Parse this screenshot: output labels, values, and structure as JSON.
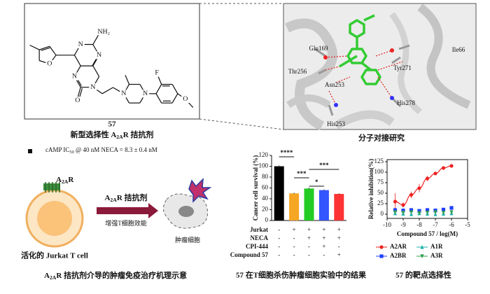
{
  "structure": {
    "compound": "57",
    "caption": [
      "新型选择性 A",
      "2A",
      "R 拮抗剂"
    ],
    "atoms": [
      "NH₂",
      "N",
      "N",
      "N",
      "N",
      "O",
      "O",
      "N",
      "N",
      "F",
      "O"
    ],
    "assay": [
      "cAMP IC",
      "50",
      " @ 40 nM NECA  =  8.3 ± 0.4 nM"
    ]
  },
  "docking": {
    "caption": "分子对接研究",
    "residues": [
      "Glu169",
      "Ile66",
      "Thr256",
      "Tyr271",
      "Asn253",
      "His278",
      "His253"
    ]
  },
  "mechanism": {
    "receptor": [
      "A",
      "2A",
      "R"
    ],
    "cell": "活化的 Jurkat T cell",
    "arrow_top": [
      "A",
      "2A",
      "R 拮抗剂"
    ],
    "arrow_bottom": "增强T细胞效能",
    "tumor": "肿瘤细胞",
    "caption": [
      "A",
      "2A",
      "R 拮抗剂介导的肿瘤免疫治疗机理示意"
    ]
  },
  "chart_data": [
    {
      "type": "bar",
      "ylabel": "Cancer cell survival (%)",
      "values": [
        100,
        50,
        59,
        56,
        49
      ],
      "errors": [
        1.5,
        1,
        1.2,
        1,
        1
      ],
      "colors": [
        "#000000",
        "#f5a623",
        "#22cc22",
        "#3355ff",
        "#ff3333"
      ],
      "ylim": [
        0,
        120
      ],
      "yticks": [
        0,
        20,
        40,
        60,
        80,
        100,
        120
      ],
      "significance": [
        "****",
        "***",
        "*",
        "***"
      ],
      "conditions": [
        {
          "name": "Jurkat",
          "marks": [
            "-",
            "+",
            "+",
            "+",
            "+"
          ]
        },
        {
          "name": "NECA",
          "marks": [
            "-",
            "-",
            "+",
            "+",
            "+"
          ]
        },
        {
          "name": "CPI-444",
          "marks": [
            "-",
            "-",
            "-",
            "+",
            "-"
          ]
        },
        {
          "name": "Compound 57",
          "marks": [
            "-",
            "-",
            "-",
            "-",
            "+"
          ]
        }
      ],
      "caption": "57 在T细胞杀伤肿瘤细胞实验中的结果"
    },
    {
      "type": "scatter",
      "ylabel": "Relative inhibition(%)",
      "xlabel": "Compound 57 / log(M)",
      "xlim": [
        -10,
        -5
      ],
      "xticks": [
        -10,
        -9,
        -8,
        -7,
        -6,
        -5
      ],
      "ylim": [
        -10,
        130
      ],
      "yticks": [
        0,
        25,
        50,
        75,
        100,
        125
      ],
      "x": [
        -9.5,
        -9,
        -8.5,
        -8,
        -7.5,
        -7,
        -6.5,
        -6
      ],
      "series": [
        {
          "name": "A2AR",
          "color": "#ee2222",
          "marker": "circle",
          "line": true,
          "values": [
            30,
            22,
            46,
            62,
            85,
            97,
            110,
            115
          ],
          "errors": [
            20,
            6,
            8,
            10,
            6,
            4,
            3,
            2
          ]
        },
        {
          "name": "A1R",
          "color": "#20b2aa",
          "marker": "triangle",
          "line": false,
          "values": [
            2,
            1,
            0,
            2,
            1,
            0,
            1,
            2
          ],
          "errors": [
            2,
            2,
            2,
            2,
            2,
            2,
            2,
            2
          ]
        },
        {
          "name": "A2BR",
          "color": "#2040ff",
          "marker": "square",
          "line": false,
          "values": [
            10,
            9,
            10,
            8,
            10,
            9,
            11,
            15
          ],
          "errors": [
            3,
            3,
            3,
            3,
            3,
            3,
            3,
            3
          ]
        },
        {
          "name": "A3R",
          "color": "#2e9e4e",
          "marker": "triangle-down",
          "line": false,
          "values": [
            5,
            4,
            5,
            3,
            4,
            5,
            4,
            5
          ],
          "errors": [
            2,
            2,
            2,
            2,
            2,
            2,
            2,
            2
          ]
        }
      ],
      "caption": "57 的靶点选择性"
    }
  ]
}
